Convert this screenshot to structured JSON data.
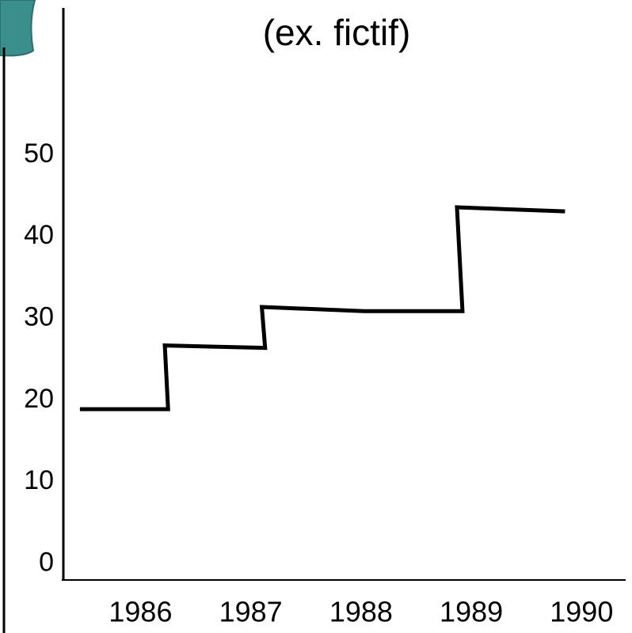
{
  "chart_data": {
    "type": "line",
    "title": "(ex. fictif)",
    "x": [
      1985.45,
      1986.25,
      1986.22,
      1987.13,
      1987.1,
      1988.03,
      1988.92,
      1988.87,
      1989.85
    ],
    "series": [
      {
        "color": "#000000",
        "values": [
          18.9,
          18.9,
          26.7,
          26.4,
          31.4,
          30.9,
          30.9,
          43.6,
          43.1
        ]
      }
    ],
    "xlim": [
      1985.3,
      1990.4
    ],
    "xticks": [
      1986,
      1987,
      1988,
      1989,
      1990
    ],
    "ylim": [
      -2,
      68
    ],
    "yticks": [
      0,
      10,
      20,
      30,
      40,
      50
    ]
  }
}
